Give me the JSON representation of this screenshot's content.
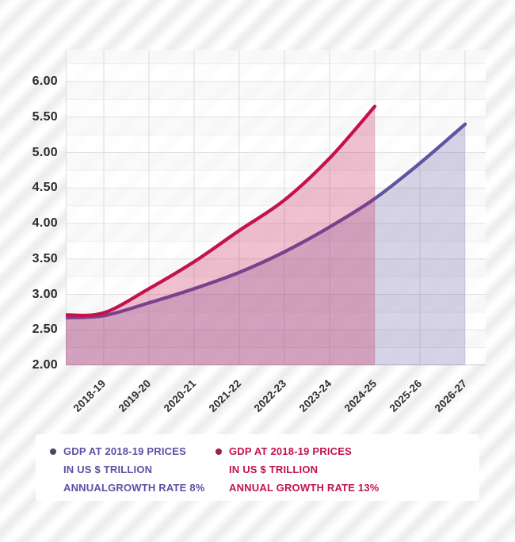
{
  "chart_data": {
    "type": "area",
    "title": "",
    "xlabel": "",
    "ylabel": "",
    "categories": [
      "2018-19",
      "2019-20",
      "2020-21",
      "2021-22",
      "2022-23",
      "2023-24",
      "2024-25",
      "2025-26",
      "2026-27"
    ],
    "series": [
      {
        "name": "GDP AT 2018-19 PRICES IN US $ TRILLION ANNUALGROWTH RATE 8%",
        "values": [
          2.7,
          2.88,
          3.08,
          3.31,
          3.6,
          3.95,
          4.35,
          4.85,
          5.4
        ],
        "line_color": "#6452a2",
        "fill_color": "rgba(99,84,160,0.25)"
      },
      {
        "name": "GDP AT 2018-19 PRICES IN US $ TRILLION ANNUAL GROWTH RATE 13%",
        "values": [
          2.74,
          3.08,
          3.46,
          3.9,
          4.33,
          4.92,
          5.65
        ],
        "line_color": "#c5124d",
        "fill_color": "rgba(197,18,77,0.26)"
      }
    ],
    "ylim": [
      2.0,
      6.45
    ],
    "yticks": [
      "2.00",
      "2.50",
      "3.00",
      "3.50",
      "4.00",
      "4.50",
      "5.00",
      "5.50",
      "6.00"
    ],
    "grid": true,
    "legend_position": "bottom"
  },
  "legend": {
    "items": [
      {
        "lines": [
          "GDP AT 2018-19 PRICES",
          "IN US $ TRILLION",
          "ANNUALGROWTH RATE 8%"
        ],
        "text_color": "#5a52a4",
        "bullet_color": "#494663"
      },
      {
        "lines": [
          "GDP AT 2018-19 PRICES",
          "IN US $ TRILLION",
          "ANNUAL GROWTH RATE 13%"
        ],
        "text_color": "#c2134d",
        "bullet_color": "#9f1e41"
      }
    ]
  },
  "colors": {
    "vertical_grid": "#dcdcdc",
    "horizontal_grid_major": "#e1e1e1",
    "horizontal_grid_minor": "#ededed",
    "baseline": "#c8c8c8",
    "axis_text": "#2b2b2b"
  }
}
